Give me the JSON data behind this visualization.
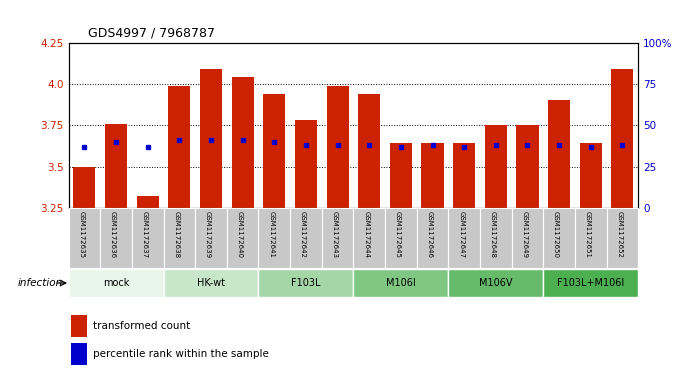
{
  "title": "GDS4997 / 7968787",
  "samples": [
    "GSM1172635",
    "GSM1172636",
    "GSM1172637",
    "GSM1172638",
    "GSM1172639",
    "GSM1172640",
    "GSM1172641",
    "GSM1172642",
    "GSM1172643",
    "GSM1172644",
    "GSM1172645",
    "GSM1172646",
    "GSM1172647",
    "GSM1172648",
    "GSM1172649",
    "GSM1172650",
    "GSM1172651",
    "GSM1172652"
  ],
  "transformed_count": [
    3.5,
    3.76,
    3.32,
    3.99,
    4.09,
    4.04,
    3.94,
    3.78,
    3.99,
    3.94,
    3.64,
    3.64,
    3.64,
    3.75,
    3.75,
    3.9,
    3.64,
    4.09
  ],
  "percentile_rank": [
    3.62,
    3.65,
    3.62,
    3.66,
    3.66,
    3.66,
    3.65,
    3.63,
    3.63,
    3.63,
    3.62,
    3.63,
    3.62,
    3.63,
    3.63,
    3.63,
    3.62,
    3.63
  ],
  "groups": [
    {
      "label": "mock",
      "start": 0,
      "end": 3,
      "color": "#e8f5e9"
    },
    {
      "label": "HK-wt",
      "start": 3,
      "end": 6,
      "color": "#c8e6c9"
    },
    {
      "label": "F103L",
      "start": 6,
      "end": 9,
      "color": "#a5d6a7"
    },
    {
      "label": "M106I",
      "start": 9,
      "end": 12,
      "color": "#81c784"
    },
    {
      "label": "M106V",
      "start": 12,
      "end": 15,
      "color": "#66bb6a"
    },
    {
      "label": "F103L+M106I",
      "start": 15,
      "end": 18,
      "color": "#4caf50"
    }
  ],
  "ylim_left": [
    3.25,
    4.25
  ],
  "ylim_right": [
    0,
    100
  ],
  "yticks_left": [
    3.25,
    3.5,
    3.75,
    4.0,
    4.25
  ],
  "yticks_right": [
    0,
    25,
    50,
    75,
    100
  ],
  "ytick_labels_right": [
    "0",
    "25",
    "50",
    "75",
    "100%"
  ],
  "bar_color": "#cc2200",
  "dot_color": "#0000cc",
  "xlabel_infection": "infection",
  "legend_transformed": "transformed count",
  "legend_percentile": "percentile rank within the sample",
  "background_color": "#ffffff",
  "sample_bg_color": "#c8c8c8"
}
